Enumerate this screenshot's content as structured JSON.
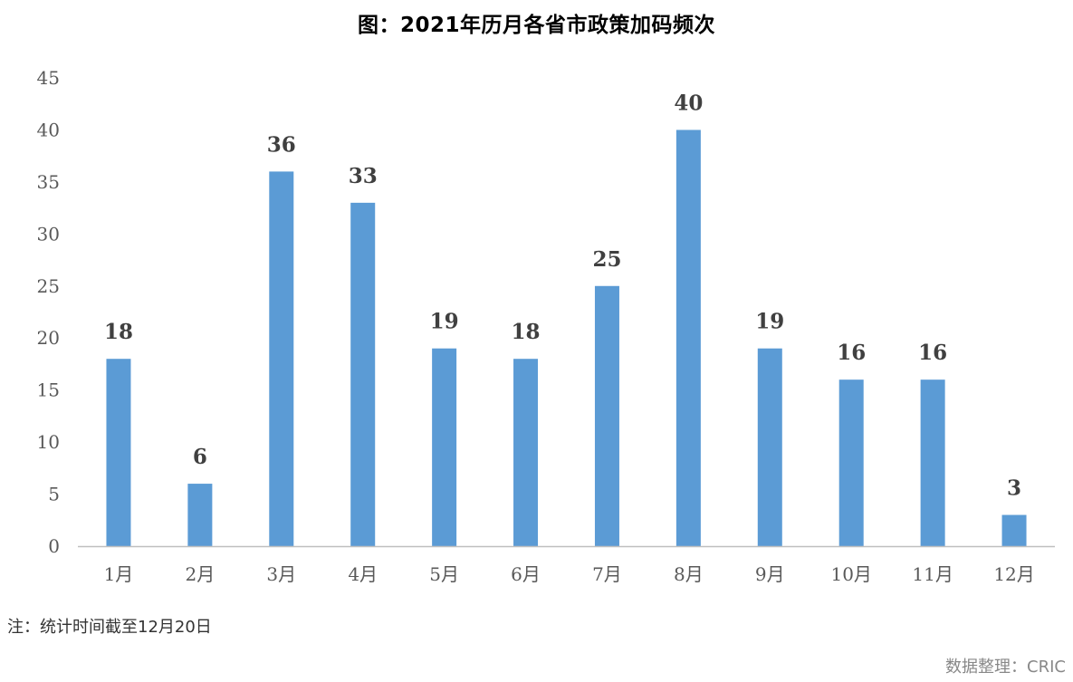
{
  "chart_data": {
    "type": "bar",
    "title": "图：2021年历月各省市政策加码频次",
    "categories": [
      "1月",
      "2月",
      "3月",
      "4月",
      "5月",
      "6月",
      "7月",
      "8月",
      "9月",
      "10月",
      "11月",
      "12月"
    ],
    "values": [
      18,
      6,
      36,
      33,
      19,
      18,
      25,
      40,
      19,
      16,
      16,
      3
    ],
    "ylim": [
      0,
      45
    ],
    "yticks": [
      0,
      5,
      10,
      15,
      20,
      25,
      30,
      35,
      40,
      45
    ],
    "grid": false,
    "bar_color": "#5b9bd5",
    "data_labels": true
  },
  "note": "注：统计时间截至12月20日",
  "source": "数据整理：CRIC"
}
